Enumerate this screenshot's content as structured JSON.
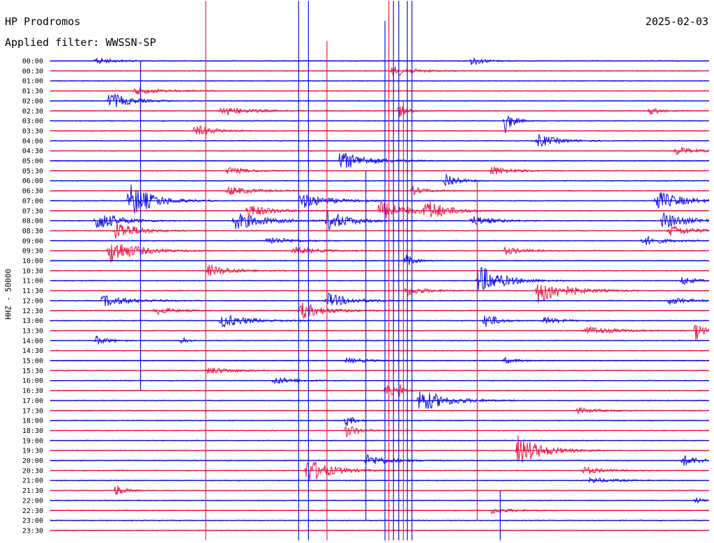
{
  "header": {
    "station": "HP Prodromos",
    "date": "2025-02-03",
    "filter": "Applied filter: WWSSN-SP"
  },
  "chart_data": {
    "type": "line",
    "title": "HP Prodromos",
    "subtitle": "Applied filter: WWSSN-SP",
    "date": "2025-02-03",
    "ylabel": "HHZ - 50000",
    "xlabel": "",
    "time_labels": [
      "00:00",
      "00:30",
      "01:00",
      "01:30",
      "02:00",
      "02:30",
      "03:00",
      "03:30",
      "04:00",
      "04:30",
      "05:00",
      "05:30",
      "06:00",
      "06:30",
      "07:00",
      "07:30",
      "08:00",
      "08:30",
      "09:00",
      "09:30",
      "10:00",
      "10:30",
      "11:00",
      "11:30",
      "12:00",
      "12:30",
      "13:00",
      "13:30",
      "14:00",
      "14:30",
      "15:00",
      "15:30",
      "16:00",
      "16:30",
      "17:00",
      "17:30",
      "18:00",
      "18:30",
      "19:00",
      "19:30",
      "20:00",
      "20:30",
      "21:00",
      "21:30",
      "22:00",
      "22:30",
      "23:00",
      "23:30"
    ],
    "colors": {
      "even_rows": "#1010e0",
      "odd_rows": "#f01848"
    },
    "events": [
      {
        "row": 0,
        "x": 0.07,
        "w": 0.04,
        "amp": 0.4
      },
      {
        "row": 0,
        "x": 0.64,
        "w": 0.03,
        "amp": 0.5
      },
      {
        "row": 1,
        "x": 0.52,
        "w": 0.05,
        "amp": 0.6
      },
      {
        "row": 3,
        "x": 0.13,
        "w": 0.06,
        "amp": 0.4
      },
      {
        "row": 4,
        "x": 0.09,
        "w": 0.05,
        "amp": 0.9
      },
      {
        "row": 5,
        "x": 0.26,
        "w": 0.07,
        "amp": 0.5
      },
      {
        "row": 5,
        "x": 0.53,
        "w": 0.02,
        "amp": 0.7
      },
      {
        "row": 5,
        "x": 0.91,
        "w": 0.03,
        "amp": 0.4
      },
      {
        "row": 6,
        "x": 0.69,
        "w": 0.02,
        "amp": 1.3
      },
      {
        "row": 7,
        "x": 0.22,
        "w": 0.05,
        "amp": 0.6
      },
      {
        "row": 8,
        "x": 0.74,
        "w": 0.05,
        "amp": 0.7
      },
      {
        "row": 9,
        "x": 0.95,
        "w": 0.05,
        "amp": 0.4
      },
      {
        "row": 10,
        "x": 0.44,
        "w": 0.07,
        "amp": 1.0
      },
      {
        "row": 11,
        "x": 0.27,
        "w": 0.05,
        "amp": 0.4
      },
      {
        "row": 11,
        "x": 0.67,
        "w": 0.05,
        "amp": 0.5
      },
      {
        "row": 12,
        "x": 0.6,
        "w": 0.03,
        "amp": 0.9
      },
      {
        "row": 13,
        "x": 0.27,
        "w": 0.06,
        "amp": 0.5
      },
      {
        "row": 13,
        "x": 0.55,
        "w": 0.04,
        "amp": 0.4
      },
      {
        "row": 14,
        "x": 0.12,
        "w": 0.06,
        "amp": 1.8
      },
      {
        "row": 14,
        "x": 0.38,
        "w": 0.07,
        "amp": 0.8
      },
      {
        "row": 14,
        "x": 0.92,
        "w": 0.07,
        "amp": 1.0
      },
      {
        "row": 15,
        "x": 0.3,
        "w": 0.06,
        "amp": 0.7
      },
      {
        "row": 15,
        "x": 0.5,
        "w": 0.07,
        "amp": 1.0
      },
      {
        "row": 15,
        "x": 0.57,
        "w": 0.05,
        "amp": 1.1
      },
      {
        "row": 16,
        "x": 0.07,
        "w": 0.06,
        "amp": 1.0
      },
      {
        "row": 16,
        "x": 0.28,
        "w": 0.08,
        "amp": 0.9
      },
      {
        "row": 16,
        "x": 0.42,
        "w": 0.06,
        "amp": 1.0
      },
      {
        "row": 16,
        "x": 0.64,
        "w": 0.06,
        "amp": 0.5
      },
      {
        "row": 16,
        "x": 0.93,
        "w": 0.07,
        "amp": 0.8
      },
      {
        "row": 17,
        "x": 0.1,
        "w": 0.05,
        "amp": 1.1
      },
      {
        "row": 17,
        "x": 0.94,
        "w": 0.06,
        "amp": 0.6
      },
      {
        "row": 18,
        "x": 0.33,
        "w": 0.06,
        "amp": 0.4
      },
      {
        "row": 18,
        "x": 0.9,
        "w": 0.05,
        "amp": 0.5
      },
      {
        "row": 19,
        "x": 0.09,
        "w": 0.07,
        "amp": 1.3
      },
      {
        "row": 19,
        "x": 0.37,
        "w": 0.06,
        "amp": 0.4
      },
      {
        "row": 19,
        "x": 0.69,
        "w": 0.05,
        "amp": 0.4
      },
      {
        "row": 20,
        "x": 0.54,
        "w": 0.02,
        "amp": 0.7
      },
      {
        "row": 21,
        "x": 0.24,
        "w": 0.06,
        "amp": 0.6
      },
      {
        "row": 22,
        "x": 0.65,
        "w": 0.06,
        "amp": 1.6
      },
      {
        "row": 22,
        "x": 0.96,
        "w": 0.03,
        "amp": 0.5
      },
      {
        "row": 23,
        "x": 0.54,
        "w": 0.05,
        "amp": 0.5
      },
      {
        "row": 23,
        "x": 0.74,
        "w": 0.07,
        "amp": 1.4
      },
      {
        "row": 24,
        "x": 0.08,
        "w": 0.07,
        "amp": 0.6
      },
      {
        "row": 24,
        "x": 0.42,
        "w": 0.06,
        "amp": 0.8
      },
      {
        "row": 24,
        "x": 0.94,
        "w": 0.05,
        "amp": 0.4
      },
      {
        "row": 25,
        "x": 0.16,
        "w": 0.05,
        "amp": 0.4
      },
      {
        "row": 25,
        "x": 0.38,
        "w": 0.06,
        "amp": 0.9
      },
      {
        "row": 26,
        "x": 0.26,
        "w": 0.07,
        "amp": 0.7
      },
      {
        "row": 26,
        "x": 0.66,
        "w": 0.03,
        "amp": 0.9
      },
      {
        "row": 26,
        "x": 0.75,
        "w": 0.04,
        "amp": 0.4
      },
      {
        "row": 27,
        "x": 0.81,
        "w": 0.07,
        "amp": 0.5
      },
      {
        "row": 27,
        "x": 0.98,
        "w": 0.02,
        "amp": 1.0
      },
      {
        "row": 28,
        "x": 0.07,
        "w": 0.03,
        "amp": 0.5
      },
      {
        "row": 28,
        "x": 0.2,
        "w": 0.01,
        "amp": 0.6
      },
      {
        "row": 30,
        "x": 0.45,
        "w": 0.05,
        "amp": 0.3
      },
      {
        "row": 30,
        "x": 0.69,
        "w": 0.04,
        "amp": 0.3
      },
      {
        "row": 31,
        "x": 0.24,
        "w": 0.06,
        "amp": 0.4
      },
      {
        "row": 32,
        "x": 0.34,
        "w": 0.05,
        "amp": 0.4
      },
      {
        "row": 33,
        "x": 0.51,
        "w": 0.02,
        "amp": 0.8
      },
      {
        "row": 33,
        "x": 0.53,
        "w": 0.01,
        "amp": 0.8
      },
      {
        "row": 34,
        "x": 0.56,
        "w": 0.07,
        "amp": 1.2
      },
      {
        "row": 35,
        "x": 0.8,
        "w": 0.05,
        "amp": 0.3
      },
      {
        "row": 36,
        "x": 0.45,
        "w": 0.02,
        "amp": 0.6
      },
      {
        "row": 37,
        "x": 0.45,
        "w": 0.03,
        "amp": 0.7
      },
      {
        "row": 39,
        "x": 0.71,
        "w": 0.06,
        "amp": 1.6
      },
      {
        "row": 40,
        "x": 0.48,
        "w": 0.06,
        "amp": 0.6
      },
      {
        "row": 40,
        "x": 0.96,
        "w": 0.04,
        "amp": 0.6
      },
      {
        "row": 41,
        "x": 0.39,
        "w": 0.06,
        "amp": 1.3
      },
      {
        "row": 41,
        "x": 0.81,
        "w": 0.05,
        "amp": 0.4
      },
      {
        "row": 42,
        "x": 0.82,
        "w": 0.06,
        "amp": 0.3
      },
      {
        "row": 43,
        "x": 0.1,
        "w": 0.02,
        "amp": 0.7
      },
      {
        "row": 44,
        "x": 0.98,
        "w": 0.02,
        "amp": 0.3
      },
      {
        "row": 45,
        "x": 0.67,
        "w": 0.05,
        "amp": 0.3
      }
    ],
    "spikes": [
      {
        "x": 0.137,
        "from_row": 0,
        "to_row": 33
      },
      {
        "x": 0.236,
        "from_row": -6,
        "to_row": 48
      },
      {
        "x": 0.377,
        "from_row": -6,
        "to_row": 48
      },
      {
        "x": 0.392,
        "from_row": -6,
        "to_row": 48
      },
      {
        "x": 0.42,
        "from_row": -2,
        "to_row": 48
      },
      {
        "x": 0.479,
        "from_row": 11,
        "to_row": 46
      },
      {
        "x": 0.508,
        "from_row": -4,
        "to_row": 48
      },
      {
        "x": 0.514,
        "from_row": -6,
        "to_row": 48
      },
      {
        "x": 0.521,
        "from_row": -6,
        "to_row": 48
      },
      {
        "x": 0.529,
        "from_row": -6,
        "to_row": 48
      },
      {
        "x": 0.536,
        "from_row": 4,
        "to_row": 48
      },
      {
        "x": 0.542,
        "from_row": -6,
        "to_row": 48
      },
      {
        "x": 0.549,
        "from_row": -6,
        "to_row": 48
      },
      {
        "x": 0.648,
        "from_row": 12,
        "to_row": 46
      },
      {
        "x": 0.683,
        "from_row": 43,
        "to_row": 48
      }
    ]
  }
}
